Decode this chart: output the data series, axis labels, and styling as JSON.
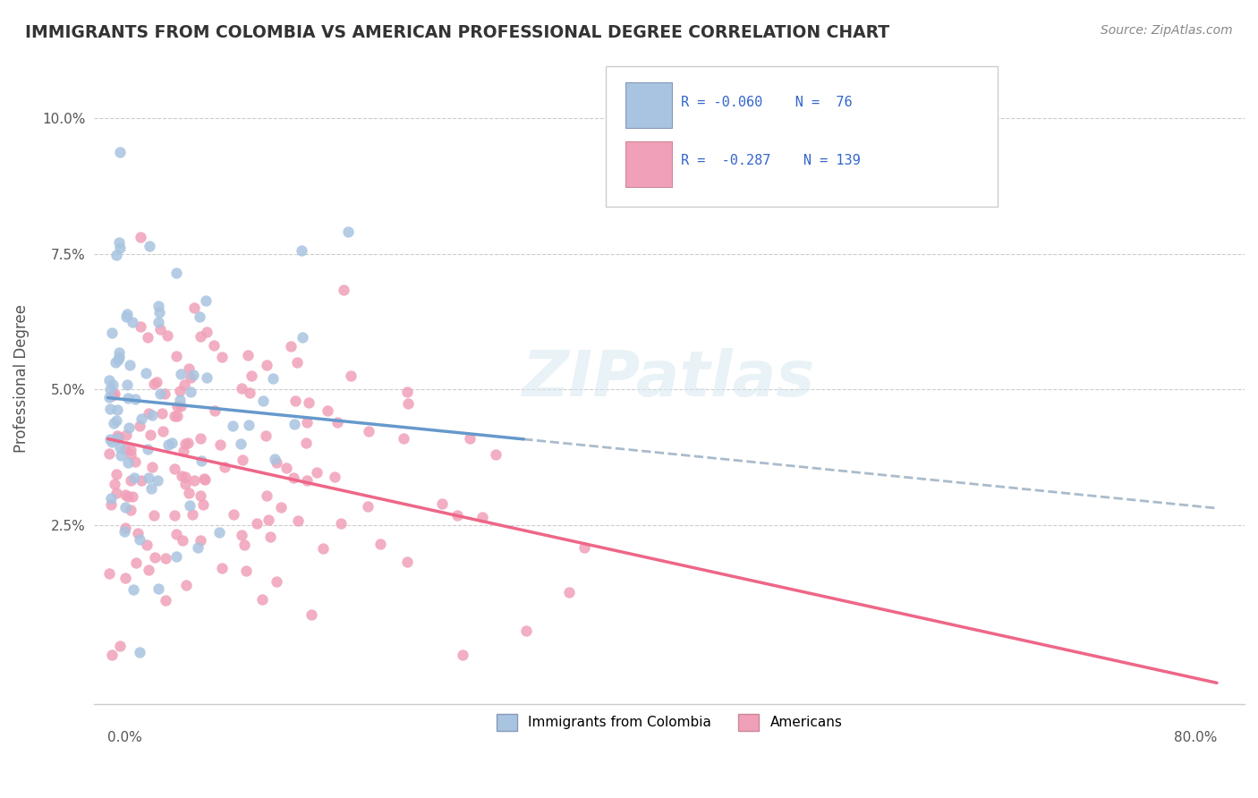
{
  "title": "IMMIGRANTS FROM COLOMBIA VS AMERICAN PROFESSIONAL DEGREE CORRELATION CHART",
  "source": "Source: ZipAtlas.com",
  "ylabel": "Professional Degree",
  "ytick_vals": [
    0.025,
    0.05,
    0.075,
    0.1
  ],
  "xlim": [
    -0.01,
    0.82
  ],
  "ylim": [
    -0.008,
    0.112
  ],
  "color_blue": "#a8c4e0",
  "color_pink": "#f0a0b8",
  "color_blue_line": "#6699cc",
  "color_pink_line": "#ee6688",
  "color_blue_dashed": "#aabbcc",
  "legend_text1": "R = -0.060    N =  76",
  "legend_text2": "R =  -0.287    N = 139"
}
